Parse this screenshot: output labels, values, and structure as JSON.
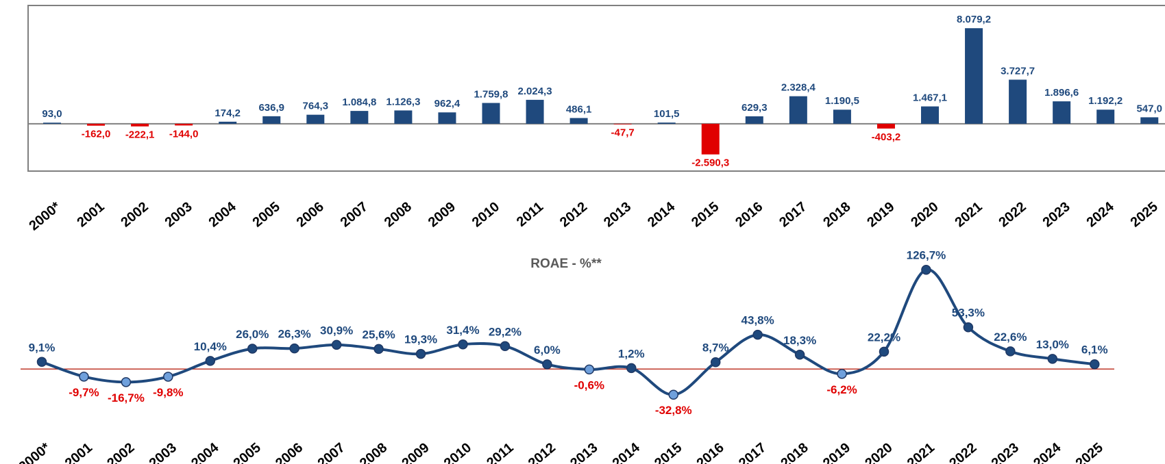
{
  "chart_data": [
    {
      "type": "bar",
      "categories": [
        "2000*",
        "2001",
        "2002",
        "2003",
        "2004",
        "2005",
        "2006",
        "2007",
        "2008",
        "2009",
        "2010",
        "2011",
        "2012",
        "2013",
        "2014",
        "2015",
        "2016",
        "2017",
        "2018",
        "2019",
        "2020",
        "2021",
        "2022",
        "2023",
        "2024",
        "2025"
      ],
      "values": [
        93.0,
        -162.0,
        -222.1,
        -144.0,
        174.2,
        636.9,
        764.3,
        1084.8,
        1126.3,
        962.4,
        1759.8,
        2024.3,
        486.1,
        -47.7,
        101.5,
        -2590.3,
        629.3,
        2328.4,
        1190.5,
        -403.2,
        1467.1,
        8079.2,
        3727.7,
        1896.6,
        1192.2,
        547.0
      ],
      "value_labels": [
        "93,0",
        "-162,0",
        "-222,1",
        "-144,0",
        "174,2",
        "636,9",
        "764,3",
        "1.084,8",
        "1.126,3",
        "962,4",
        "1.759,8",
        "2.024,3",
        "486,1",
        "-47,7",
        "101,5",
        "-2.590,3",
        "629,3",
        "2.328,4",
        "1.190,5",
        "-403,2",
        "1.467,1",
        "8.079,2",
        "3.727,7",
        "1.896,6",
        "1.192,2",
        "547,0"
      ],
      "positive_color": "#1f497d",
      "negative_color": "#e00000",
      "ylim": [
        -4000,
        10000
      ],
      "frame": true
    },
    {
      "type": "line",
      "title": "ROAE - %**",
      "categories": [
        "2000*",
        "2001",
        "2002",
        "2003",
        "2004",
        "2005",
        "2006",
        "2007",
        "2008",
        "2009",
        "2010",
        "2011",
        "2012",
        "2013",
        "2014",
        "2015",
        "2016",
        "2017",
        "2018",
        "2019",
        "2020",
        "2021",
        "2022",
        "2023",
        "2024",
        "2025"
      ],
      "values": [
        9.1,
        -9.7,
        -16.7,
        -9.8,
        10.4,
        26.0,
        26.3,
        30.9,
        25.6,
        19.3,
        31.4,
        29.2,
        6.0,
        -0.6,
        1.2,
        -32.8,
        8.7,
        43.8,
        18.3,
        -6.2,
        22.2,
        126.7,
        53.3,
        22.6,
        13.0,
        6.1
      ],
      "value_labels": [
        "9,1%",
        "-9,7%",
        "-16,7%",
        "-9,8%",
        "10,4%",
        "26,0%",
        "26,3%",
        "30,9%",
        "25,6%",
        "19,3%",
        "31,4%",
        "29,2%",
        "6,0%",
        "-0,6%",
        "1,2%",
        "-32,8%",
        "8,7%",
        "43,8%",
        "18,3%",
        "-6,2%",
        "22,2%",
        "126,7%",
        "53,3%",
        "22,6%",
        "13,0%",
        "6,1%"
      ],
      "color": "#1f497d",
      "positive_color": "#1f497d",
      "negative_color": "#e00000",
      "marker_color": "#1f497d",
      "negative_marker_color": "#6fa0dc",
      "zero_line_color": "#c0392b",
      "ylim": [
        -40,
        140
      ],
      "smooth": true
    }
  ]
}
